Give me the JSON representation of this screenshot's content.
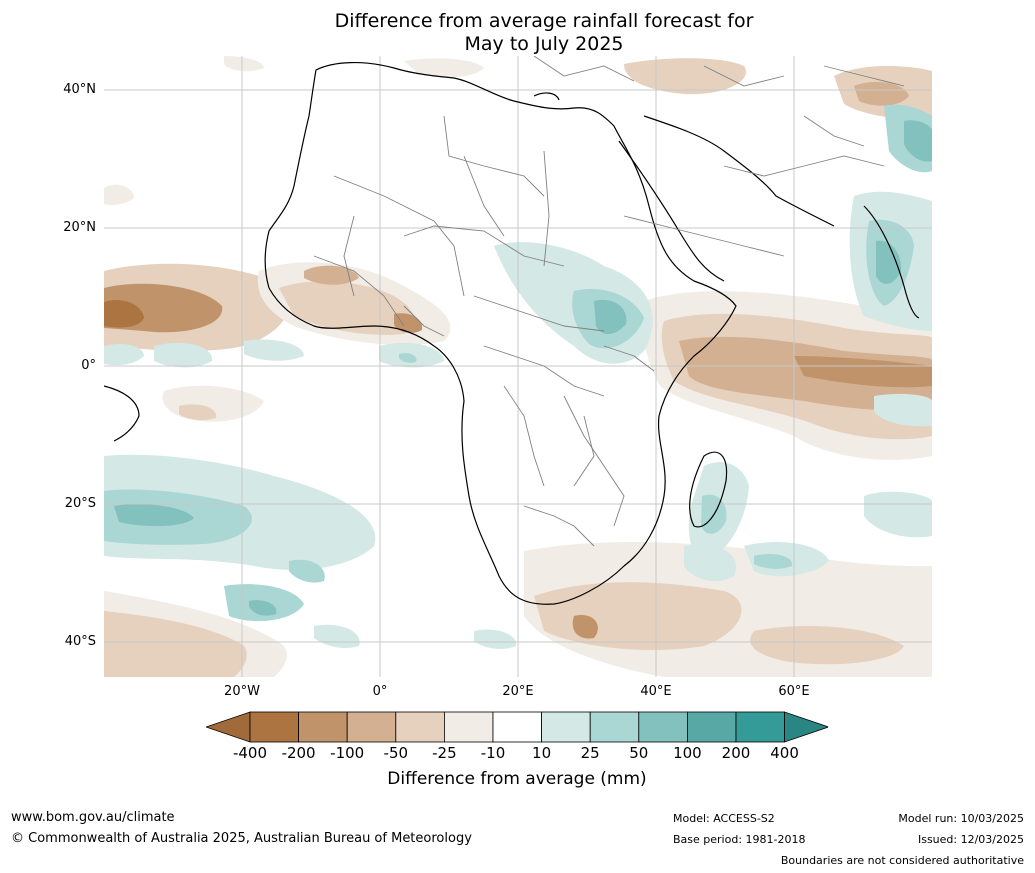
{
  "title": {
    "line1": "Difference from average rainfall forecast for",
    "line2": "May to July 2025"
  },
  "map": {
    "region": "Africa",
    "lat_labels": [
      "40°N",
      "20°N",
      "0°",
      "20°S",
      "40°S"
    ],
    "lon_labels": [
      "20°W",
      "0°",
      "20°E",
      "40°E",
      "60°E"
    ]
  },
  "legend": {
    "title": "Difference from average (mm)",
    "ticks": [
      "-400",
      "-200",
      "-100",
      "-50",
      "-25",
      "-10",
      "10",
      "25",
      "50",
      "100",
      "200",
      "400"
    ],
    "colors": [
      "#a06a3a",
      "#ab7440",
      "#c0936a",
      "#d3b091",
      "#e5d1bd",
      "#f2ece6",
      "#ffffff",
      "#d4e8e6",
      "#aad6d3",
      "#82c1be",
      "#58a9a6",
      "#359b98",
      "#2a8683"
    ]
  },
  "footer": {
    "website": "www.bom.gov.au/climate",
    "copyright": "© Commonwealth of Australia 2025, Australian Bureau of Meteorology",
    "model": "Model: ACCESS-S2",
    "base_period": "Base period: 1981-2018",
    "model_run": "Model run: 10/03/2025",
    "issued": "Issued: 12/03/2025",
    "disclaimer": "Boundaries are not considered authoritative"
  }
}
